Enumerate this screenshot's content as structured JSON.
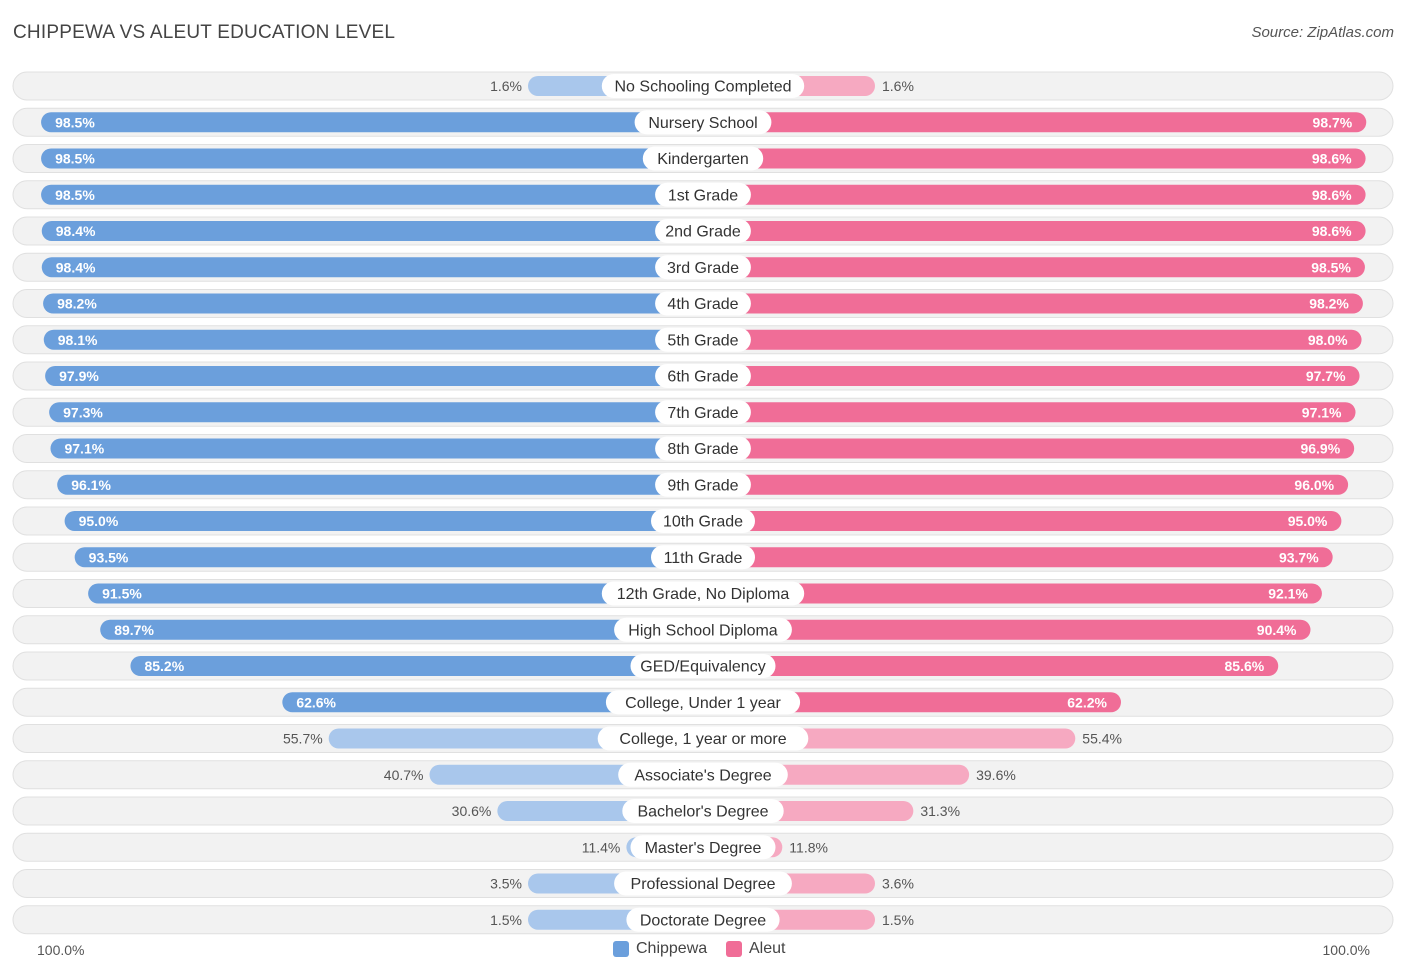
{
  "title": "CHIPPEWA VS ALEUT EDUCATION LEVEL",
  "source": "Source: ZipAtlas.com",
  "colors": {
    "chippewa": "#6b9fdc",
    "chippewa_light": "#a9c7ec",
    "aleut": "#f06d97",
    "aleut_light": "#f6a9c1"
  },
  "chart_data": {
    "type": "bar",
    "orientation": "horizontal-diverging",
    "categories": [
      "No Schooling Completed",
      "Nursery School",
      "Kindergarten",
      "1st Grade",
      "2nd Grade",
      "3rd Grade",
      "4th Grade",
      "5th Grade",
      "6th Grade",
      "7th Grade",
      "8th Grade",
      "9th Grade",
      "10th Grade",
      "11th Grade",
      "12th Grade, No Diploma",
      "High School Diploma",
      "GED/Equivalency",
      "College, Under 1 year",
      "College, 1 year or more",
      "Associate's Degree",
      "Bachelor's Degree",
      "Master's Degree",
      "Professional Degree",
      "Doctorate Degree"
    ],
    "series": [
      {
        "name": "Chippewa",
        "values": [
          1.6,
          98.5,
          98.5,
          98.5,
          98.4,
          98.4,
          98.2,
          98.1,
          97.9,
          97.3,
          97.1,
          96.1,
          95.0,
          93.5,
          91.5,
          89.7,
          85.2,
          62.6,
          55.7,
          40.7,
          30.6,
          11.4,
          3.5,
          1.5
        ],
        "labels": [
          "1.6%",
          "98.5%",
          "98.5%",
          "98.5%",
          "98.4%",
          "98.4%",
          "98.2%",
          "98.1%",
          "97.9%",
          "97.3%",
          "97.1%",
          "96.1%",
          "95.0%",
          "93.5%",
          "91.5%",
          "89.7%",
          "85.2%",
          "62.6%",
          "55.7%",
          "40.7%",
          "30.6%",
          "11.4%",
          "3.5%",
          "1.5%"
        ]
      },
      {
        "name": "Aleut",
        "values": [
          1.6,
          98.7,
          98.6,
          98.6,
          98.6,
          98.5,
          98.2,
          98.0,
          97.7,
          97.1,
          96.9,
          96.0,
          95.0,
          93.7,
          92.1,
          90.4,
          85.6,
          62.2,
          55.4,
          39.6,
          31.3,
          11.8,
          3.6,
          1.5
        ],
        "labels": [
          "1.6%",
          "98.7%",
          "98.6%",
          "98.6%",
          "98.6%",
          "98.5%",
          "98.2%",
          "98.0%",
          "97.7%",
          "97.1%",
          "96.9%",
          "96.0%",
          "95.0%",
          "93.7%",
          "92.1%",
          "90.4%",
          "85.6%",
          "62.2%",
          "55.4%",
          "39.6%",
          "31.3%",
          "11.8%",
          "3.6%",
          "1.5%"
        ]
      }
    ],
    "xlim": [
      0,
      100
    ],
    "axis_left_label": "100.0%",
    "axis_right_label": "100.0%",
    "legend": [
      "Chippewa",
      "Aleut"
    ],
    "legend_position": "bottom-center"
  }
}
